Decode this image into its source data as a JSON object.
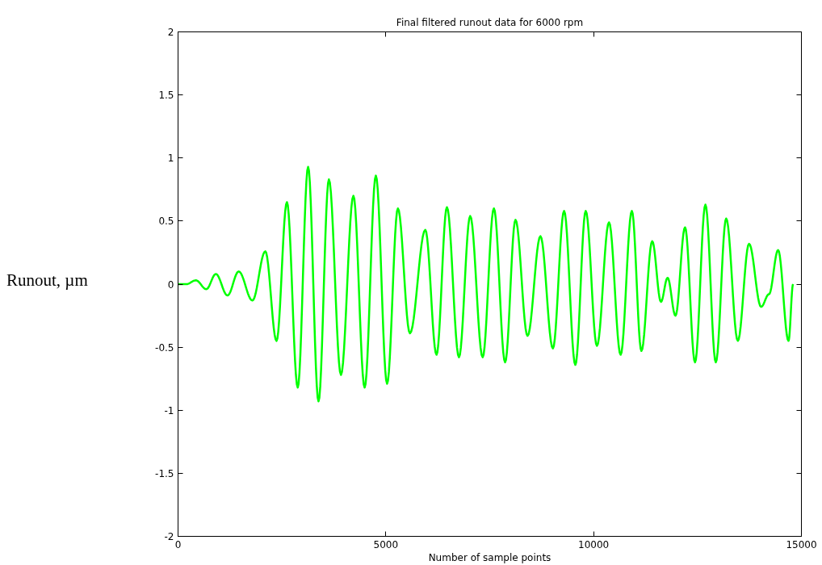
{
  "chart_data": {
    "type": "line",
    "title": "Final filtered runout data for 6000 rpm",
    "xlabel": "Number of sample points",
    "ylabel": "Runout, µm",
    "xlim": [
      0,
      15000
    ],
    "ylim": [
      -2,
      2
    ],
    "xticks": [
      0,
      5000,
      10000,
      15000
    ],
    "yticks": [
      -2,
      -1.5,
      -1,
      -0.5,
      0,
      0.5,
      1,
      1.5,
      2
    ],
    "grid": false,
    "marker": "none",
    "line_style": "solid",
    "series": [
      {
        "color": "#00ff00",
        "x": [
          0,
          200,
          430,
          680,
          910,
          1190,
          1460,
          1790,
          2100,
          2370,
          2620,
          2880,
          3130,
          3380,
          3630,
          3920,
          4220,
          4490,
          4760,
          5030,
          5290,
          5580,
          5950,
          6220,
          6470,
          6760,
          7030,
          7330,
          7600,
          7870,
          8120,
          8410,
          8720,
          9020,
          9290,
          9560,
          9810,
          10080,
          10370,
          10650,
          10920,
          11150,
          11410,
          11620,
          11780,
          11970,
          12200,
          12440,
          12690,
          12940,
          13190,
          13470,
          13740,
          14030,
          14220,
          14440,
          14690,
          14800
        ],
        "values": [
          0,
          0,
          0.03,
          -0.04,
          0.08,
          -0.09,
          0.1,
          -0.13,
          0.26,
          -0.45,
          0.65,
          -0.82,
          0.93,
          -0.93,
          0.83,
          -0.72,
          0.7,
          -0.82,
          0.86,
          -0.79,
          0.6,
          -0.39,
          0.43,
          -0.56,
          0.61,
          -0.58,
          0.54,
          -0.58,
          0.6,
          -0.62,
          0.51,
          -0.41,
          0.38,
          -0.51,
          0.58,
          -0.64,
          0.58,
          -0.49,
          0.49,
          -0.56,
          0.58,
          -0.53,
          0.34,
          -0.14,
          0.05,
          -0.25,
          0.45,
          -0.62,
          0.63,
          -0.62,
          0.52,
          -0.45,
          0.32,
          -0.18,
          -0.08,
          0.27,
          -0.45,
          0
        ]
      }
    ]
  }
}
